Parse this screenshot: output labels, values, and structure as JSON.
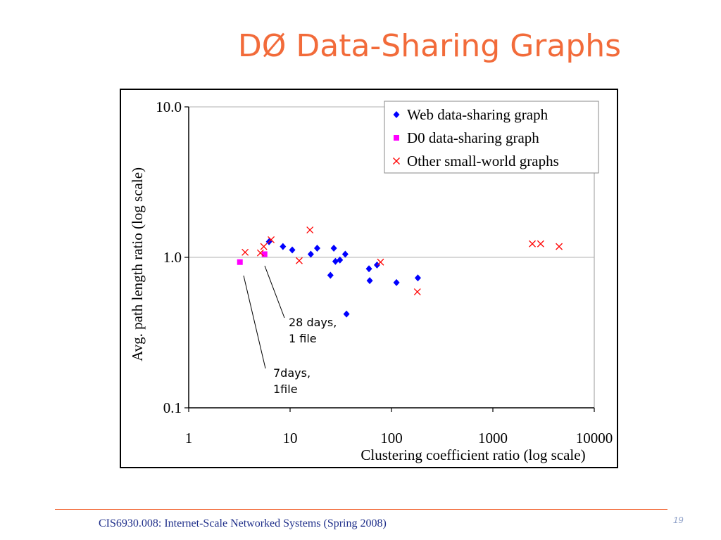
{
  "slide": {
    "title": "DØ Data-Sharing Graphs",
    "footer": "CIS6930.008: Internet-Scale Networked Systems (Spring 2008)",
    "page_number": "19"
  },
  "chart_data": {
    "type": "scatter",
    "title": "",
    "xlabel": "Clustering coefficient ratio (log scale)",
    "ylabel": "Avg. path length ratio (log scale)",
    "x_scale": "log",
    "y_scale": "log",
    "xlim": [
      1,
      10000
    ],
    "ylim": [
      0.1,
      10
    ],
    "x_ticks": [
      1,
      10,
      100,
      1000,
      10000
    ],
    "x_tick_labels": [
      "1",
      "10",
      "100",
      "1000",
      "10000"
    ],
    "y_ticks": [
      0.1,
      1,
      10
    ],
    "y_tick_labels": [
      "0.1",
      "1.0",
      "10.0"
    ],
    "grid": "horizontal",
    "legend_position": "top-right",
    "series": [
      {
        "name": "Web data-sharing graph",
        "marker": "diamond",
        "color": "#0000ff",
        "points": [
          [
            6.2,
            1.27
          ],
          [
            8.5,
            1.18
          ],
          [
            10.5,
            1.12
          ],
          [
            16,
            1.05
          ],
          [
            18.5,
            1.15
          ],
          [
            25,
            0.76
          ],
          [
            27,
            1.15
          ],
          [
            28,
            0.94
          ],
          [
            31,
            0.96
          ],
          [
            35,
            1.05
          ],
          [
            36,
            0.42
          ],
          [
            60,
            0.84
          ],
          [
            61,
            0.7
          ],
          [
            72,
            0.89
          ],
          [
            112,
            0.68
          ],
          [
            182,
            0.73
          ]
        ]
      },
      {
        "name": "D0 data-sharing graph",
        "marker": "square",
        "color": "#ff00ff",
        "points": [
          [
            3.2,
            0.93
          ],
          [
            5.6,
            1.05
          ]
        ]
      },
      {
        "name": "Other small-world graphs",
        "marker": "x",
        "color": "#ff0000",
        "points": [
          [
            3.6,
            1.08
          ],
          [
            5.1,
            1.07
          ],
          [
            5.5,
            1.18
          ],
          [
            6.5,
            1.31
          ],
          [
            12.3,
            0.95
          ],
          [
            15.7,
            1.52
          ],
          [
            78,
            0.93
          ],
          [
            180,
            0.59
          ],
          [
            2450,
            1.23
          ],
          [
            2960,
            1.23
          ],
          [
            4500,
            1.18
          ]
        ]
      }
    ],
    "annotations": [
      {
        "lines": [
          "28 days,",
          "1 file"
        ],
        "points_to": [
          5.6,
          1.05
        ]
      },
      {
        "lines": [
          "7days,",
          "1file"
        ],
        "points_to": [
          3.2,
          0.93
        ]
      }
    ]
  }
}
